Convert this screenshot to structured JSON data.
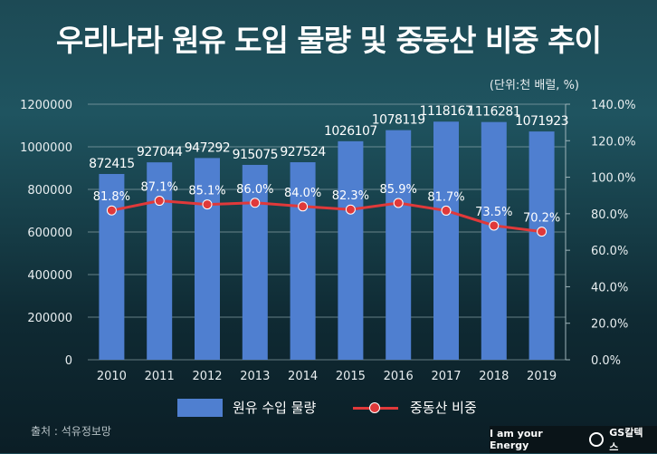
{
  "title": "우리나라 원유 도입 물량 및 중동산 비중 추이",
  "unit_note": "(단위:천 배럴, %)",
  "source": "출처 : 석유정보망",
  "brand": {
    "slogan": "I am your Energy",
    "logo_text": "GS칼텍스"
  },
  "colors": {
    "bar": "#4f7fd0",
    "line": "#e0393a",
    "grid": "#9fb4ba"
  },
  "chart_data": {
    "type": "bar+line",
    "categories": [
      "2010",
      "2011",
      "2012",
      "2013",
      "2014",
      "2015",
      "2016",
      "2017",
      "2018",
      "2019"
    ],
    "series": [
      {
        "name": "원유 수입 물량",
        "type": "bar",
        "axis": "left",
        "values": [
          872415,
          927044,
          947292,
          915075,
          927524,
          1026107,
          1078119,
          1118167,
          1116281,
          1071923
        ],
        "labels": [
          "872415",
          "927044",
          "947292",
          "915075",
          "927524",
          "1026107",
          "1078119",
          "1118167",
          "1116281",
          "1071923"
        ]
      },
      {
        "name": "중동산 비중",
        "type": "line",
        "axis": "right",
        "values": [
          81.8,
          87.1,
          85.1,
          86.0,
          84.0,
          82.3,
          85.9,
          81.7,
          73.5,
          70.2
        ],
        "labels": [
          "81.8%",
          "87.1%",
          "85.1%",
          "86.0%",
          "84.0%",
          "82.3%",
          "85.9%",
          "81.7%",
          "73.5%",
          "70.2%"
        ]
      }
    ],
    "y_left": {
      "range": [
        0,
        1200000
      ],
      "ticks": [
        "0",
        "200000",
        "400000",
        "600000",
        "800000",
        "1000000",
        "1200000"
      ]
    },
    "y_right": {
      "range": [
        0,
        140
      ],
      "ticks": [
        "0.0%",
        "20.0%",
        "40.0%",
        "60.0%",
        "80.0%",
        "100.0%",
        "120.0%",
        "140.0%"
      ]
    },
    "grid": true,
    "legend": "bottom"
  }
}
